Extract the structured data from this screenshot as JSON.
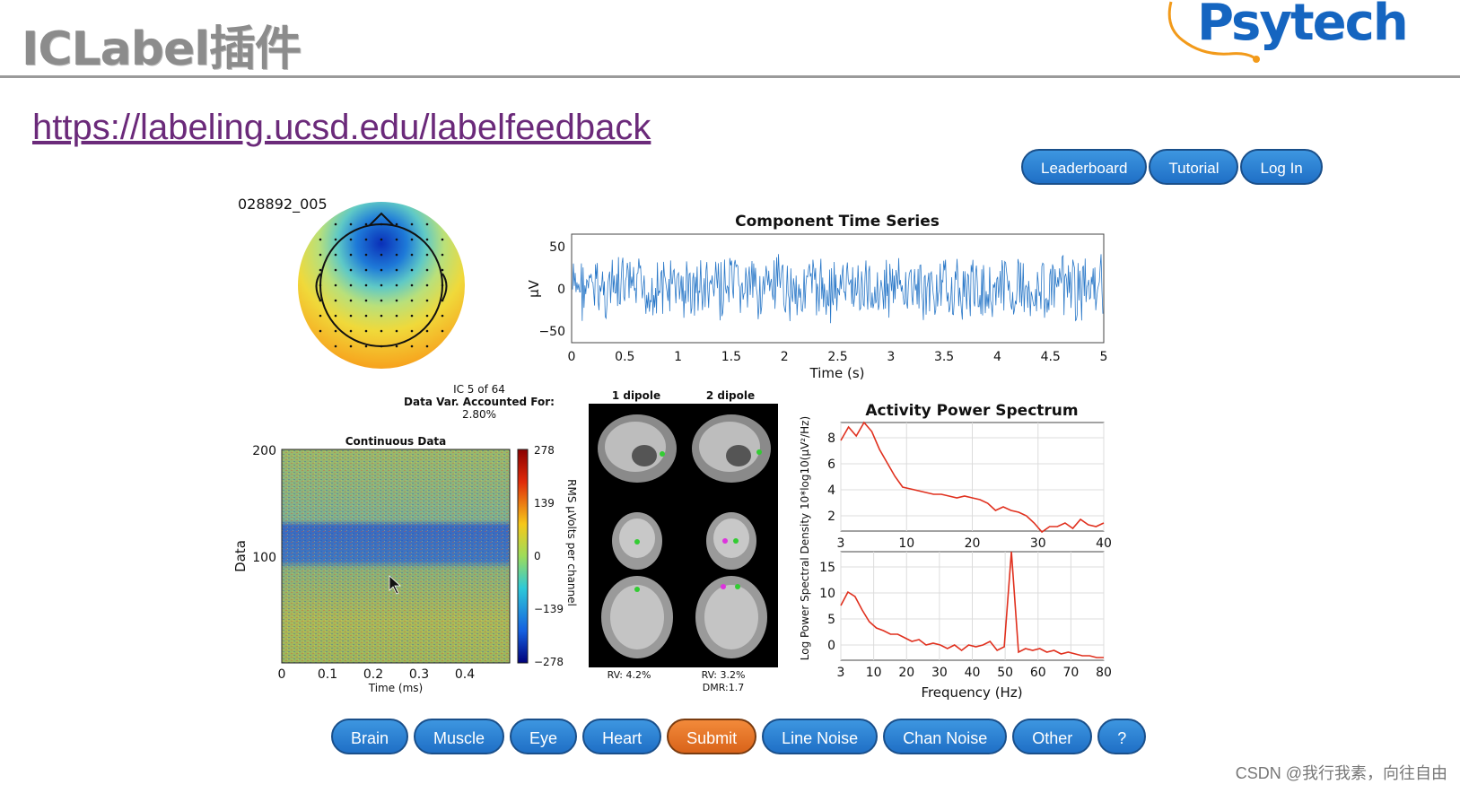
{
  "slide": {
    "title": "ICLabel插件",
    "url": "https://labeling.ucsd.edu/labelfeedback"
  },
  "logo": {
    "text": "Psytech",
    "color": "#1565c0"
  },
  "top_buttons": [
    "Leaderboard",
    "Tutorial",
    "Log In"
  ],
  "component": {
    "id": "028892_005",
    "ic_info": "IC 5 of 64",
    "var_label": "Data Var. Accounted For:",
    "var_value": "2.80%"
  },
  "time_series": {
    "title": "Component Time Series",
    "ylabel": "μV",
    "xlabel": "Time (s)",
    "yticks": [
      "50",
      "0",
      "−50"
    ],
    "xticks": [
      "0",
      "0.5",
      "1",
      "1.5",
      "2",
      "2.5",
      "3",
      "3.5",
      "4",
      "4.5",
      "5"
    ]
  },
  "continuous": {
    "title": "Continuous Data",
    "ylabel": "Data",
    "xlabel": "Time (ms)",
    "yticks": [
      "200",
      "100"
    ],
    "xticks": [
      "0",
      "0.1",
      "0.2",
      "0.3",
      "0.4"
    ],
    "colorbar_ticks": [
      "278",
      "139",
      "0",
      "−139",
      "−278"
    ],
    "colorbar_label": "RMS μVolts per channel"
  },
  "dipole": {
    "label1": "1 dipole",
    "label2": "2 dipole",
    "rv1": "RV: 4.2%",
    "rv2": "RV: 3.2%",
    "dmr2": "DMR:1.7"
  },
  "spectrum": {
    "title": "Activity Power Spectrum",
    "ylabel": "Log Power Spectral Density 10*log10(μV²/Hz)",
    "xlabel": "Frequency (Hz)",
    "top_yticks": [
      "8",
      "6",
      "4",
      "2"
    ],
    "top_xticks": [
      "3",
      "10",
      "20",
      "30",
      "40"
    ],
    "bottom_yticks": [
      "15",
      "10",
      "5",
      "0"
    ],
    "bottom_xticks": [
      "3",
      "10",
      "20",
      "30",
      "40",
      "50",
      "60",
      "70",
      "80"
    ]
  },
  "bottom_buttons": [
    "Brain",
    "Muscle",
    "Eye",
    "Heart",
    "Submit",
    "Line Noise",
    "Chan Noise",
    "Other",
    "?"
  ],
  "watermark": "CSDN @我行我素，向往自由"
}
